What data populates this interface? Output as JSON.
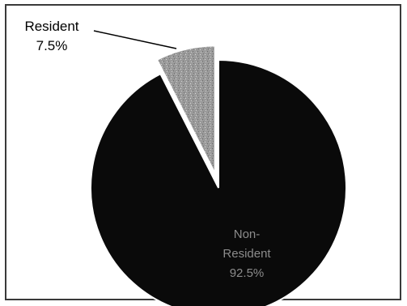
{
  "chart_data": {
    "type": "pie",
    "slices": [
      {
        "label": "Resident",
        "value": 7.5,
        "display": "7.5%",
        "color": "#9a9a9a",
        "exploded": true
      },
      {
        "label": "Non-Resident",
        "value": 92.5,
        "display": "92.5%",
        "color": "#0a0a0a",
        "exploded": false
      }
    ],
    "title": "",
    "legend": "none"
  }
}
